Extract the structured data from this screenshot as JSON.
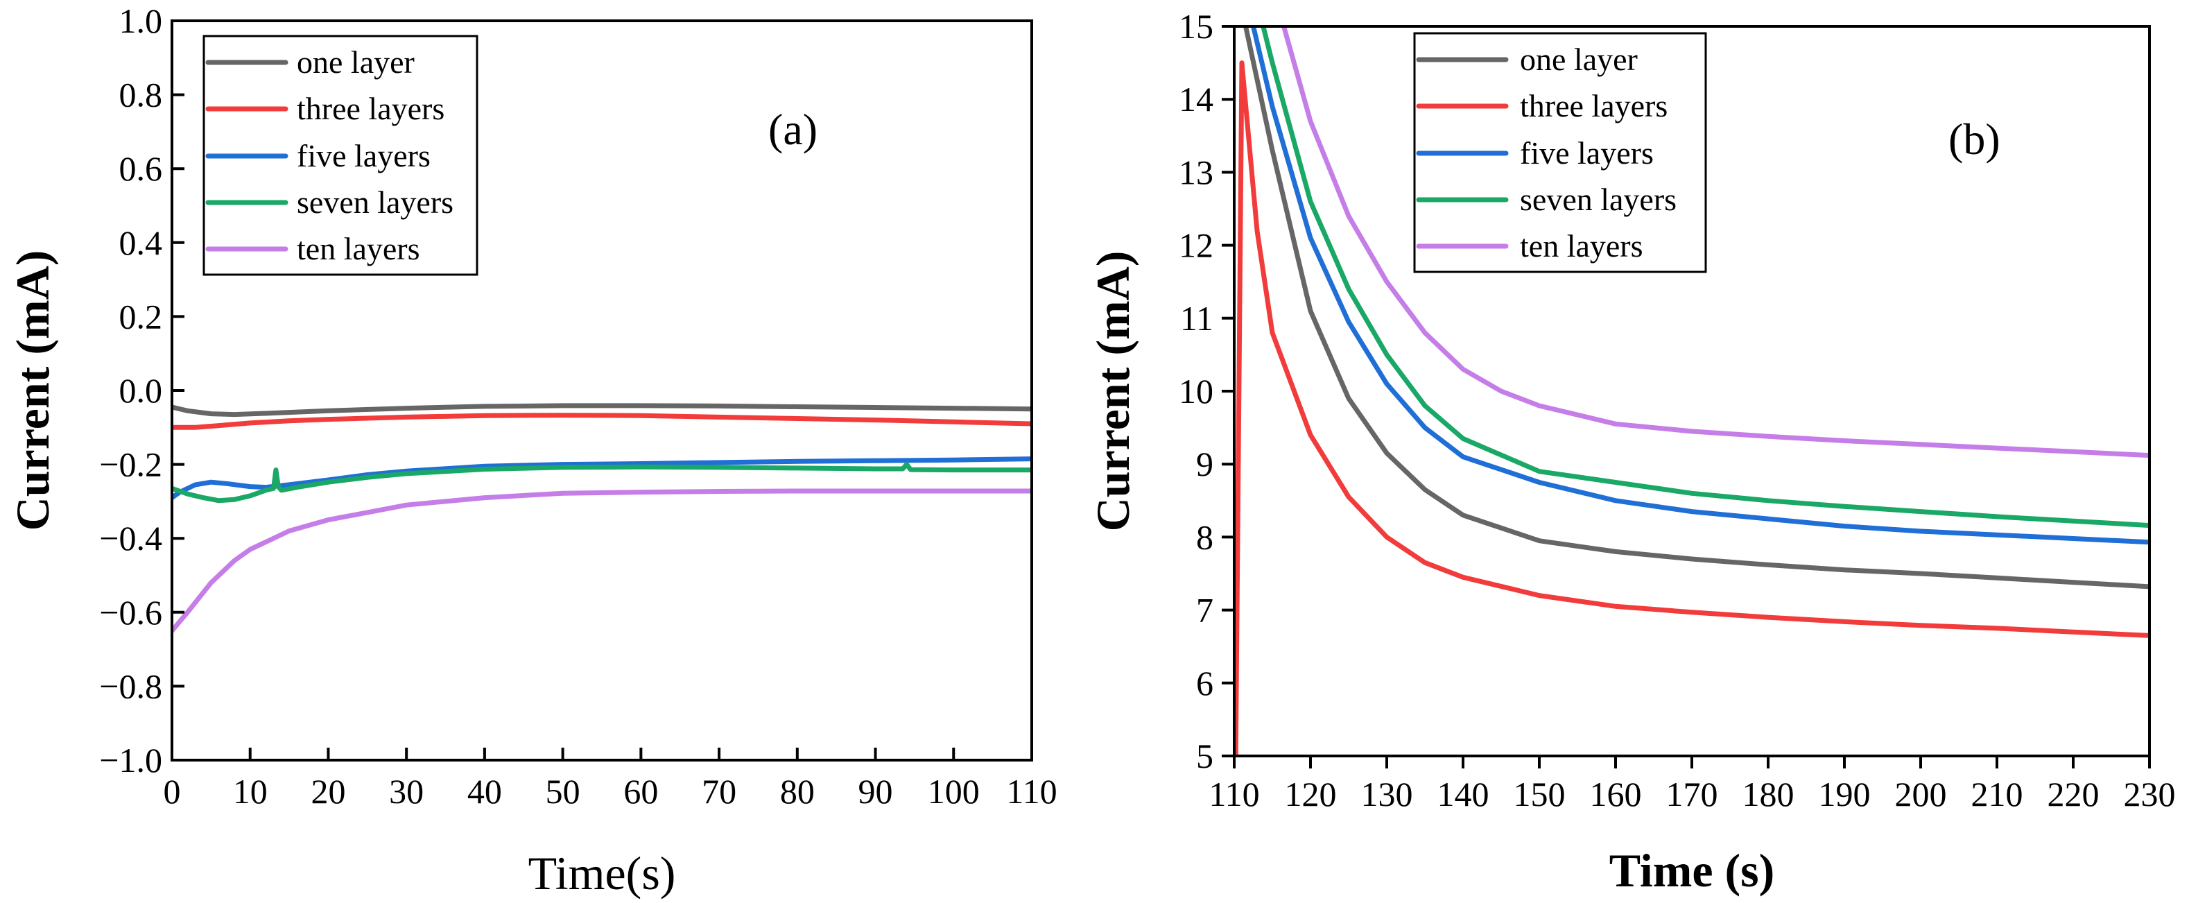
{
  "chart_data": [
    {
      "type": "line",
      "panel_label": "(a)",
      "xlabel": "Time(s)",
      "ylabel": "Current (mA)",
      "xlim": [
        0,
        110
      ],
      "ylim": [
        -1.0,
        1.0
      ],
      "xticks": [
        0,
        10,
        20,
        30,
        40,
        50,
        60,
        70,
        80,
        90,
        100,
        110
      ],
      "xtick_labels": [
        "0",
        "10",
        "20",
        "30",
        "40",
        "50",
        "60",
        "70",
        "80",
        "90",
        "100",
        "110"
      ],
      "yticks": [
        1.0,
        0.8,
        0.6,
        0.4,
        0.2,
        0.0,
        -0.2,
        -0.4,
        -0.6,
        -0.8,
        -1.0
      ],
      "ytick_labels": [
        "1.0",
        "0.8",
        "0.6",
        "0.4",
        "0.2",
        "0.0",
        "−0.2",
        "−0.4",
        "−0.6",
        "−0.8",
        "−1.0"
      ],
      "legend_position": "top-left",
      "series": [
        {
          "name": "one layer",
          "color": "#666666",
          "x": [
            0,
            2,
            5,
            8,
            12,
            20,
            30,
            40,
            50,
            60,
            70,
            80,
            90,
            100,
            110
          ],
          "y": [
            -0.045,
            -0.055,
            -0.063,
            -0.065,
            -0.062,
            -0.055,
            -0.048,
            -0.043,
            -0.041,
            -0.041,
            -0.042,
            -0.044,
            -0.046,
            -0.048,
            -0.05
          ]
        },
        {
          "name": "three layers",
          "color": "#f23b3b",
          "x": [
            0,
            3,
            6,
            10,
            15,
            20,
            30,
            40,
            50,
            60,
            70,
            80,
            90,
            100,
            110
          ],
          "y": [
            -0.1,
            -0.1,
            -0.095,
            -0.088,
            -0.082,
            -0.078,
            -0.072,
            -0.068,
            -0.067,
            -0.068,
            -0.072,
            -0.076,
            -0.08,
            -0.085,
            -0.09
          ]
        },
        {
          "name": "five layers",
          "color": "#1f6fd6",
          "x": [
            0,
            1,
            3,
            5,
            7,
            10,
            12,
            15,
            20,
            25,
            30,
            40,
            50,
            60,
            70,
            80,
            90,
            100,
            110
          ],
          "y": [
            -0.29,
            -0.275,
            -0.255,
            -0.248,
            -0.252,
            -0.26,
            -0.262,
            -0.255,
            -0.242,
            -0.228,
            -0.218,
            -0.205,
            -0.2,
            -0.198,
            -0.195,
            -0.192,
            -0.19,
            -0.188,
            -0.185
          ]
        },
        {
          "name": "seven layers",
          "color": "#1aa866",
          "x": [
            0,
            2,
            4,
            6,
            8,
            10,
            12,
            13,
            13.3,
            13.6,
            14,
            16,
            20,
            25,
            30,
            40,
            50,
            60,
            70,
            80,
            90,
            93.5,
            94,
            94.5,
            100,
            110
          ],
          "y": [
            -0.265,
            -0.28,
            -0.29,
            -0.298,
            -0.295,
            -0.285,
            -0.27,
            -0.265,
            -0.215,
            -0.26,
            -0.27,
            -0.262,
            -0.248,
            -0.235,
            -0.225,
            -0.213,
            -0.208,
            -0.207,
            -0.208,
            -0.21,
            -0.212,
            -0.212,
            -0.2,
            -0.214,
            -0.215,
            -0.215
          ]
        },
        {
          "name": "ten layers",
          "color": "#c57ee8",
          "x": [
            0,
            2,
            5,
            8,
            10,
            15,
            20,
            25,
            30,
            40,
            50,
            60,
            70,
            80,
            90,
            100,
            110
          ],
          "y": [
            -0.65,
            -0.6,
            -0.52,
            -0.46,
            -0.43,
            -0.38,
            -0.35,
            -0.33,
            -0.31,
            -0.29,
            -0.278,
            -0.275,
            -0.273,
            -0.272,
            -0.272,
            -0.272,
            -0.272
          ]
        }
      ]
    },
    {
      "type": "line",
      "panel_label": "(b)",
      "xlabel": "Time (s)",
      "ylabel": "Current (mA)",
      "xlim": [
        110,
        230
      ],
      "ylim": [
        5,
        15
      ],
      "xticks": [
        110,
        120,
        130,
        140,
        150,
        160,
        170,
        180,
        190,
        200,
        210,
        220,
        230
      ],
      "xtick_labels": [
        "110",
        "120",
        "130",
        "140",
        "150",
        "160",
        "170",
        "180",
        "190",
        "200",
        "210",
        "220",
        "230"
      ],
      "yticks": [
        15,
        14,
        13,
        12,
        11,
        10,
        9,
        8,
        7,
        6,
        5
      ],
      "ytick_labels": [
        "15",
        "14",
        "13",
        "12",
        "11",
        "10",
        "9",
        "8",
        "7",
        "6",
        "5"
      ],
      "legend_position": "top-center",
      "series": [
        {
          "name": "one layer",
          "color": "#666666",
          "x": [
            111.5,
            115,
            120,
            125,
            130,
            135,
            140,
            150,
            160,
            170,
            180,
            190,
            200,
            210,
            220,
            230
          ],
          "y": [
            15,
            13.3,
            11.1,
            9.9,
            9.15,
            8.65,
            8.3,
            7.95,
            7.8,
            7.7,
            7.62,
            7.55,
            7.5,
            7.44,
            7.38,
            7.32
          ]
        },
        {
          "name": "three layers",
          "color": "#f23b3b",
          "x": [
            110.2,
            111,
            113,
            115,
            120,
            125,
            130,
            135,
            140,
            150,
            160,
            170,
            180,
            190,
            200,
            210,
            220,
            230
          ],
          "y": [
            5,
            14.5,
            12.2,
            10.8,
            9.4,
            8.55,
            8.0,
            7.65,
            7.45,
            7.2,
            7.05,
            6.97,
            6.9,
            6.84,
            6.79,
            6.75,
            6.7,
            6.65
          ]
        },
        {
          "name": "five layers",
          "color": "#1f6fd6",
          "x": [
            112.5,
            115,
            120,
            125,
            130,
            135,
            140,
            150,
            160,
            170,
            180,
            190,
            200,
            210,
            220,
            230
          ],
          "y": [
            15,
            13.9,
            12.1,
            10.95,
            10.1,
            9.5,
            9.1,
            8.75,
            8.5,
            8.35,
            8.25,
            8.15,
            8.08,
            8.03,
            7.98,
            7.93
          ]
        },
        {
          "name": "seven layers",
          "color": "#1aa866",
          "x": [
            113.8,
            115,
            120,
            125,
            130,
            135,
            140,
            150,
            160,
            170,
            180,
            190,
            200,
            210,
            220,
            230
          ],
          "y": [
            15,
            14.5,
            12.6,
            11.4,
            10.5,
            9.8,
            9.35,
            8.9,
            8.75,
            8.6,
            8.5,
            8.42,
            8.35,
            8.28,
            8.22,
            8.16
          ]
        },
        {
          "name": "ten layers",
          "color": "#c57ee8",
          "x": [
            116.5,
            120,
            125,
            130,
            135,
            140,
            145,
            150,
            160,
            170,
            180,
            190,
            200,
            210,
            220,
            230
          ],
          "y": [
            15,
            13.7,
            12.4,
            11.5,
            10.8,
            10.3,
            10.0,
            9.8,
            9.55,
            9.45,
            9.38,
            9.32,
            9.27,
            9.22,
            9.17,
            9.12
          ]
        }
      ]
    }
  ]
}
